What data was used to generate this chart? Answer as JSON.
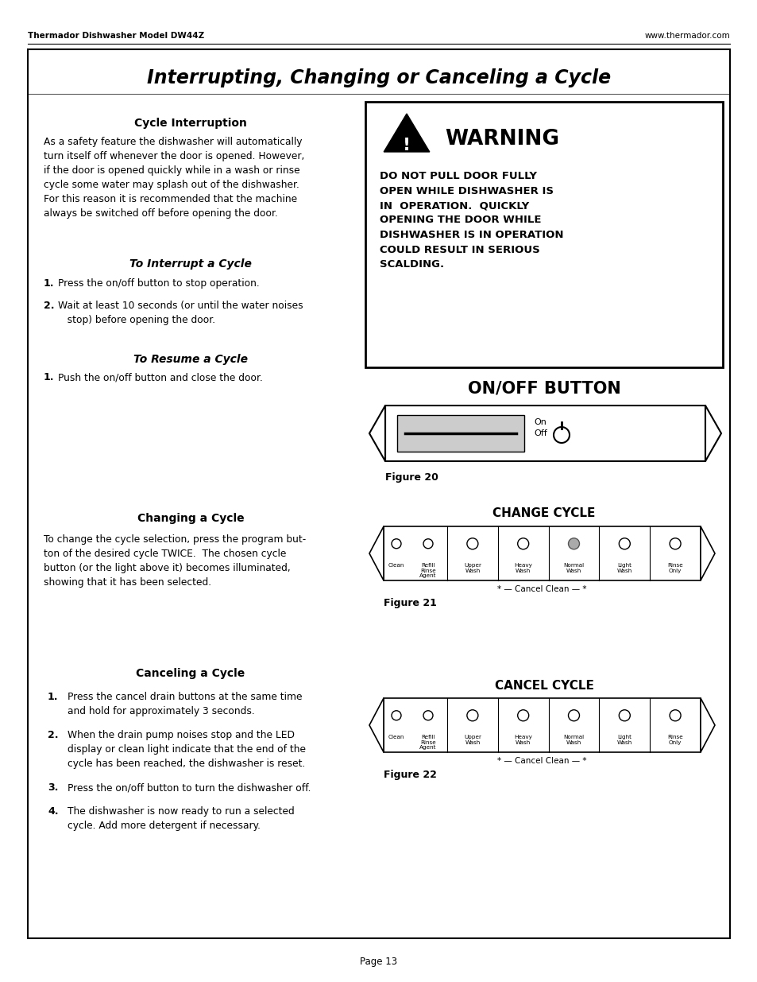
{
  "header_left": "Thermador Dishwasher Model DW44Z",
  "header_right": "www.thermador.com",
  "page_number": "Page 13",
  "main_title": "Interrupting, Changing or Canceling a Cycle",
  "section1_title": "Cycle Interruption",
  "section1_text": "As a safety feature the dishwasher will automatically\nturn itself off whenever the door is opened. However,\nif the door is opened quickly while in a wash or rinse\ncycle some water may splash out of the dishwasher.\nFor this reason it is recommended that the machine\nalways be switched off before opening the door.",
  "section2_title": "To Interrupt a Cycle",
  "section2_item1": "Press the on/off button to stop operation.",
  "section2_item2": "Wait at least 10 seconds (or until the water noises\n   stop) before opening the door.",
  "section3_title": "To Resume a Cycle",
  "section3_item1": "Push the on/off button and close the door.",
  "warning_title": "WARNING",
  "warning_text": "DO NOT PULL DOOR FULLY\nOPEN WHILE DISHWASHER IS\nIN  OPERATION.  QUICKLY\nOPENING THE DOOR WHILE\nDISHWASHER IS IN OPERATION\nCOULD RESULT IN SERIOUS\nSCALDING.",
  "onoff_title": "ON/OFF BUTTON",
  "fig20_label": "Figure 20",
  "section4_title": "Changing a Cycle",
  "section4_text": "To change the cycle selection, press the program but-\nton of the desired cycle TWICE.  The chosen cycle\nbutton (or the light above it) becomes illuminated,\nshowing that it has been selected.",
  "change_cycle_title": "CHANGE CYCLE",
  "fig21_label": "Figure 21",
  "section5_title": "Canceling a Cycle",
  "section5_item1": "Press the cancel drain buttons at the same time\nand hold for approximately 3 seconds.",
  "section5_item2": "When the drain pump noises stop and the LED\ndisplay or clean light indicate that the end of the\ncycle has been reached, the dishwasher is reset.",
  "section5_item3": "Press the on/off button to turn the dishwasher off.",
  "section5_item4": "The dishwasher is now ready to run a selected\ncycle. Add more detergent if necessary.",
  "cancel_cycle_title": "CANCEL CYCLE",
  "fig22_label": "Figure 22",
  "cycle_buttons_change": [
    "Clean",
    "Refill\nRinse\nAgent",
    "Upper\nWash",
    "Heavy\nWash",
    "Normal\nWash",
    "Light\nWash",
    "Rinse\nOnly"
  ],
  "cycle_buttons_cancel": [
    "Clean",
    "Refill\nRinse\nAgent",
    "Upper\nWash",
    "Heavy\nWash",
    "Normal\nWash",
    "Light\nWash",
    "Rinse\nOnly"
  ],
  "cancel_label": "* — Cancel Clean — *",
  "bg_color": "#ffffff",
  "text_color": "#000000"
}
